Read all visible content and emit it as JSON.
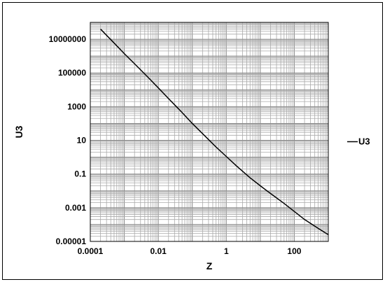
{
  "chart_data": {
    "type": "line",
    "xscale": "log",
    "yscale": "log",
    "xlim": [
      0.0001,
      1000
    ],
    "ylim": [
      1e-05,
      100000000
    ],
    "xticks": [
      "0.0001",
      "0.01",
      "1",
      "100"
    ],
    "yticks": [
      "10000000",
      "100000",
      "1000",
      "10",
      "0.1",
      "0.001",
      "0.00001"
    ],
    "xlabel": "Z",
    "ylabel": "U3",
    "grid": true,
    "legend_position": "right",
    "series": [
      {
        "name": "U3",
        "color": "#000000",
        "x": [
          0.0002,
          0.0005,
          0.001,
          0.002,
          0.005,
          0.01,
          0.02,
          0.05,
          0.1,
          0.2,
          0.5,
          1,
          2,
          5,
          10,
          20,
          50,
          100,
          200,
          500,
          1000
        ],
        "y": [
          40000000,
          6000000,
          1400000,
          350000,
          55000,
          13000,
          3000,
          450,
          100,
          25,
          4,
          1.1,
          0.3,
          0.06,
          0.02,
          0.007,
          0.0018,
          0.0006,
          0.0002,
          6e-05,
          2.5e-05
        ]
      }
    ]
  }
}
